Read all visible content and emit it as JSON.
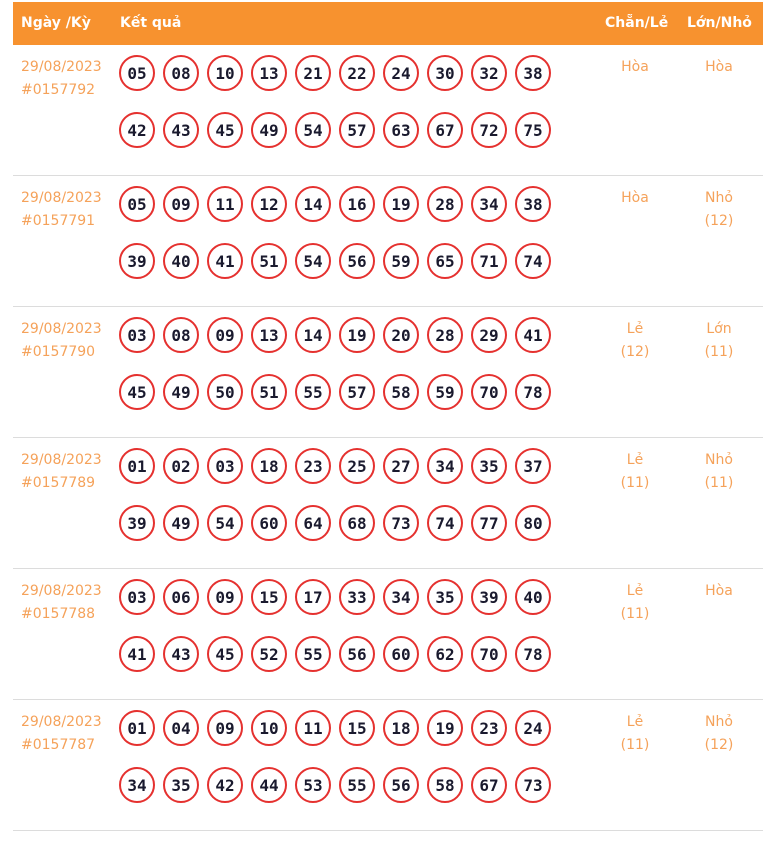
{
  "header": {
    "date": "Ngày /Kỳ",
    "result": "Kết quả",
    "even_odd": "Chẵn/Lẻ",
    "big_small": "Lớn/Nhỏ"
  },
  "rows": [
    {
      "date": "29/08/2023",
      "id": "#0157792",
      "line1": [
        "05",
        "08",
        "10",
        "13",
        "21",
        "22",
        "24",
        "30",
        "32",
        "38"
      ],
      "line2": [
        "42",
        "43",
        "45",
        "49",
        "54",
        "57",
        "63",
        "67",
        "72",
        "75"
      ],
      "even_odd": "Hòa",
      "even_odd_count": "",
      "big_small": "Hòa",
      "big_small_count": ""
    },
    {
      "date": "29/08/2023",
      "id": "#0157791",
      "line1": [
        "05",
        "09",
        "11",
        "12",
        "14",
        "16",
        "19",
        "28",
        "34",
        "38"
      ],
      "line2": [
        "39",
        "40",
        "41",
        "51",
        "54",
        "56",
        "59",
        "65",
        "71",
        "74"
      ],
      "even_odd": "Hòa",
      "even_odd_count": "",
      "big_small": "Nhỏ",
      "big_small_count": "(12)"
    },
    {
      "date": "29/08/2023",
      "id": "#0157790",
      "line1": [
        "03",
        "08",
        "09",
        "13",
        "14",
        "19",
        "20",
        "28",
        "29",
        "41"
      ],
      "line2": [
        "45",
        "49",
        "50",
        "51",
        "55",
        "57",
        "58",
        "59",
        "70",
        "78"
      ],
      "even_odd": "Lẻ",
      "even_odd_count": "(12)",
      "big_small": "Lớn",
      "big_small_count": "(11)"
    },
    {
      "date": "29/08/2023",
      "id": "#0157789",
      "line1": [
        "01",
        "02",
        "03",
        "18",
        "23",
        "25",
        "27",
        "34",
        "35",
        "37"
      ],
      "line2": [
        "39",
        "49",
        "54",
        "60",
        "64",
        "68",
        "73",
        "74",
        "77",
        "80"
      ],
      "even_odd": "Lẻ",
      "even_odd_count": "(11)",
      "big_small": "Nhỏ",
      "big_small_count": "(11)"
    },
    {
      "date": "29/08/2023",
      "id": "#0157788",
      "line1": [
        "03",
        "06",
        "09",
        "15",
        "17",
        "33",
        "34",
        "35",
        "39",
        "40"
      ],
      "line2": [
        "41",
        "43",
        "45",
        "52",
        "55",
        "56",
        "60",
        "62",
        "70",
        "78"
      ],
      "even_odd": "Lẻ",
      "even_odd_count": "(11)",
      "big_small": "Hòa",
      "big_small_count": ""
    },
    {
      "date": "29/08/2023",
      "id": "#0157787",
      "line1": [
        "01",
        "04",
        "09",
        "10",
        "11",
        "15",
        "18",
        "19",
        "23",
        "24"
      ],
      "line2": [
        "34",
        "35",
        "42",
        "44",
        "53",
        "55",
        "56",
        "58",
        "67",
        "73"
      ],
      "even_odd": "Lẻ",
      "even_odd_count": "(11)",
      "big_small": "Nhỏ",
      "big_small_count": "(12)"
    }
  ]
}
